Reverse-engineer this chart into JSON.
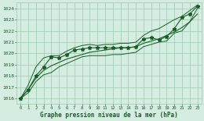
{
  "title": "Graphe pression niveau de la mer (hPa)",
  "bg_color": "#d4ede0",
  "grid_color": "#9dc9b0",
  "line_color": "#1a5c28",
  "xlim": [
    -0.5,
    23.5
  ],
  "ylim": [
    1015.5,
    1024.5
  ],
  "yticks": [
    1016,
    1017,
    1018,
    1019,
    1020,
    1021,
    1022,
    1023,
    1024
  ],
  "xticks": [
    0,
    1,
    2,
    3,
    4,
    5,
    6,
    7,
    8,
    9,
    10,
    11,
    12,
    13,
    14,
    15,
    16,
    17,
    18,
    19,
    20,
    21,
    22,
    23
  ],
  "hours": [
    0,
    1,
    2,
    3,
    4,
    5,
    6,
    7,
    8,
    9,
    10,
    11,
    12,
    13,
    14,
    15,
    16,
    17,
    18,
    19,
    20,
    21,
    22,
    23
  ],
  "pressure_main": [
    1016.0,
    1016.8,
    1018.0,
    1018.8,
    1019.7,
    1019.6,
    1019.9,
    1020.3,
    1020.4,
    1020.5,
    1020.5,
    1020.5,
    1020.5,
    1020.5,
    1020.5,
    1020.6,
    1021.3,
    1021.4,
    1021.2,
    1021.5,
    1022.2,
    1023.2,
    1023.5,
    1024.2
  ],
  "pressure_upper": [
    1016.0,
    1017.2,
    1018.8,
    1019.6,
    1019.8,
    1019.8,
    1020.2,
    1020.5,
    1020.7,
    1020.8,
    1020.7,
    1020.8,
    1020.8,
    1020.9,
    1020.9,
    1021.0,
    1021.6,
    1022.0,
    1022.2,
    1022.6,
    1023.0,
    1023.3,
    1023.8,
    1024.3
  ],
  "pressure_lower": [
    1016.0,
    1016.5,
    1017.5,
    1018.1,
    1018.3,
    1018.8,
    1019.1,
    1019.4,
    1019.7,
    1019.8,
    1019.8,
    1019.8,
    1019.9,
    1019.9,
    1020.0,
    1020.1,
    1020.6,
    1020.8,
    1021.0,
    1021.1,
    1021.8,
    1022.0,
    1022.8,
    1024.0
  ],
  "pressure_smooth": [
    1016.0,
    1016.8,
    1017.8,
    1018.5,
    1018.9,
    1019.2,
    1019.5,
    1019.7,
    1019.9,
    1020.1,
    1020.2,
    1020.3,
    1020.4,
    1020.5,
    1020.5,
    1020.6,
    1020.9,
    1021.1,
    1021.3,
    1021.6,
    1021.9,
    1022.3,
    1022.8,
    1023.5
  ],
  "marker_size": 3.5,
  "lw_main": 0.8,
  "lw_smooth": 0.8,
  "lw_env": 0.7
}
